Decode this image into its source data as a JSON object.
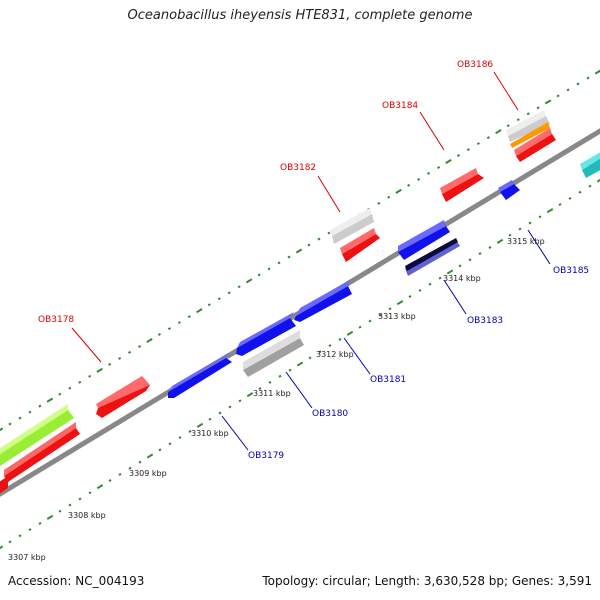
{
  "title": "Oceanobacillus iheyensis HTE831, complete genome",
  "footer": {
    "accession": "Accession: NC_004193",
    "summary": "Topology: circular; Length: 3,630,528 bp; Genes: 3,591"
  },
  "colors": {
    "forward_label": "#dd0000",
    "reverse_label": "#0000bb",
    "backbone": "#888888",
    "tick": "#2e8b2e"
  },
  "scale": {
    "ticks": [
      "3307 kbp",
      "3308 kbp",
      "3309 kbp",
      "3310 kbp",
      "3311 kbp",
      "3312 kbp",
      "3313 kbp",
      "3314 kbp",
      "3315 kbp"
    ]
  },
  "genes": [
    {
      "id": "OB3178",
      "strand": "forward",
      "color": "#ee0000"
    },
    {
      "id": "OB3179",
      "strand": "reverse",
      "color": "#1111ee"
    },
    {
      "id": "OB3180",
      "strand": "reverse",
      "color": "#bbbbbb"
    },
    {
      "id": "OB3181",
      "strand": "reverse",
      "color": "#1111ee"
    },
    {
      "id": "OB3182",
      "strand": "forward",
      "color": "#bbbbbb"
    },
    {
      "id": "OB3183",
      "strand": "reverse",
      "color": "#1111ee"
    },
    {
      "id": "OB3184",
      "strand": "forward",
      "color": "#ee0000"
    },
    {
      "id": "OB3185",
      "strand": "reverse",
      "color": "#1111ee"
    },
    {
      "id": "OB3186",
      "strand": "forward",
      "color": "#bbbbbb"
    }
  ]
}
